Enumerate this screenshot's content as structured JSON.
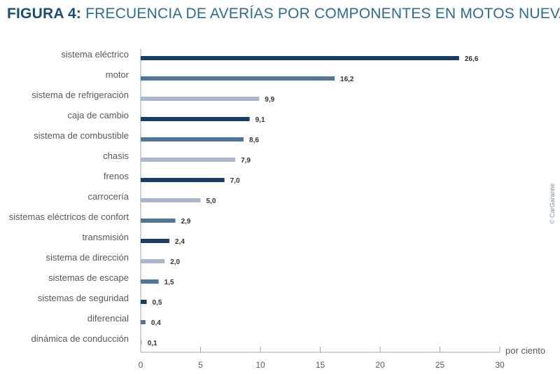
{
  "header": {
    "figure_label": "FIGURA 4:",
    "title_text": "FRECUENCIA DE AVERÍAS POR COMPONENTES EN MOTOS NUEVAS"
  },
  "credit": "© CarGarantie",
  "colors": {
    "title": "#1a4f73",
    "dark": "#173f63",
    "medium": "#4f7599",
    "light": "#a8b7cc",
    "axis": "#9aa3ab"
  },
  "chart_data": {
    "type": "bar",
    "orientation": "horizontal",
    "categories": [
      "sistema eléctrico",
      "motor",
      "sistema de refrigeración",
      "caja de cambio",
      "sistema de combustible",
      "chasis",
      "frenos",
      "carrocería",
      "sistemas eléctricos de confort",
      "transmisión",
      "sistema de dirección",
      "sistemas de escape",
      "sistemas de seguridad",
      "diferencial",
      "dinámica de conducción"
    ],
    "values": [
      26.6,
      16.2,
      9.9,
      9.1,
      8.6,
      7.9,
      7.0,
      5.0,
      2.9,
      2.4,
      2.0,
      1.5,
      0.5,
      0.4,
      0.1
    ],
    "value_labels": [
      "26,6",
      "16,2",
      "9,9",
      "9,1",
      "8,6",
      "7,9",
      "7,0",
      "5,0",
      "2,9",
      "2,4",
      "2,0",
      "1,5",
      "0,5",
      "0,4",
      "0,1"
    ],
    "bar_colors": [
      "dark",
      "medium",
      "light",
      "dark",
      "medium",
      "light",
      "dark",
      "light",
      "medium",
      "dark",
      "light",
      "medium",
      "dark",
      "medium",
      "light"
    ],
    "xlim": [
      0,
      30
    ],
    "x_ticks": [
      0,
      5,
      10,
      15,
      20,
      25,
      30
    ],
    "x_unit": "por ciento",
    "grid": false
  }
}
